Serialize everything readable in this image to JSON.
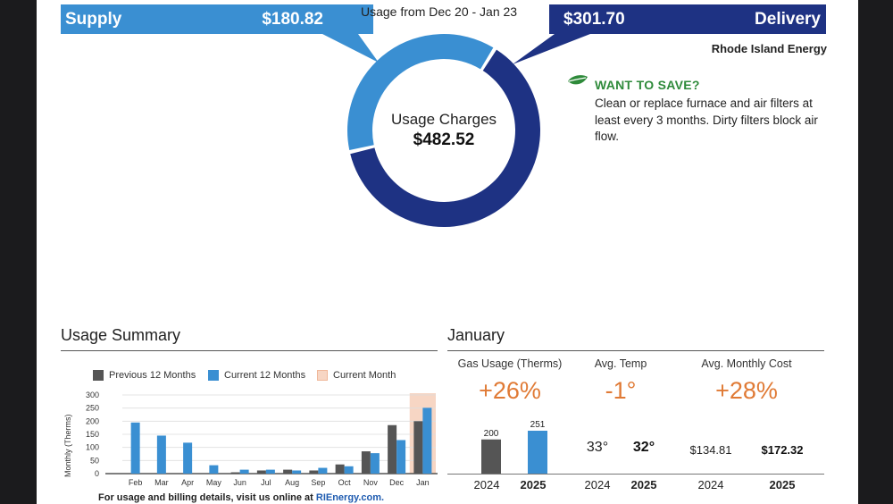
{
  "header": {
    "usage_period": "Usage from Dec 20 - Jan 23",
    "supply_label": "Supply",
    "supply_amount": "$180.82",
    "delivery_label": "Delivery",
    "delivery_amount": "$301.70",
    "company": "Rhode Island Energy"
  },
  "donut": {
    "center_label": "Usage Charges",
    "center_amount": "$482.52",
    "supply_value": 180.82,
    "delivery_value": 301.7,
    "supply_color": "#3a8fd2",
    "delivery_color": "#1e3283"
  },
  "tip": {
    "icon": "leaf-icon",
    "title": "WANT TO SAVE?",
    "text": "Clean or replace furnace and air filters at least every 3 months. Dirty filters block air flow."
  },
  "usage_summary": {
    "title": "Usage Summary",
    "legend": {
      "previous": "Previous 12 Months",
      "current": "Current 12 Months",
      "current_month": "Current Month"
    },
    "colors": {
      "previous": "#555555",
      "current": "#3a8fd2",
      "current_month": "#f7d6c4"
    },
    "footer_text": "For usage and billing details, visit us online at ",
    "footer_link": "RIEnergy.com."
  },
  "chart_data": {
    "type": "bar",
    "categories": [
      "Feb",
      "Mar",
      "Apr",
      "May",
      "Jun",
      "Jul",
      "Aug",
      "Sep",
      "Oct",
      "Nov",
      "Dec",
      "Jan"
    ],
    "series": [
      {
        "name": "Previous 12 Months",
        "values": [
          0,
          0,
          0,
          0,
          5,
          12,
          15,
          12,
          35,
          85,
          185,
          200
        ]
      },
      {
        "name": "Current 12 Months",
        "values": [
          195,
          145,
          118,
          32,
          15,
          15,
          12,
          22,
          28,
          78,
          128,
          251
        ]
      }
    ],
    "highlight_category": "Jan",
    "ylabel": "Monthly (Therms)",
    "ylim": [
      0,
      300
    ],
    "yticks": [
      0,
      50,
      100,
      150,
      200,
      250,
      300
    ],
    "legend_position": "top"
  },
  "january": {
    "title": "January",
    "gas_usage": {
      "label": "Gas Usage (Therms)",
      "change": "+26%",
      "value_2024": 200,
      "value_2025": 251,
      "value_2024_label": "200",
      "value_2025_label": "251",
      "year_2024": "2024",
      "year_2025": "2025"
    },
    "avg_temp": {
      "label": "Avg. Temp",
      "change": "-1°",
      "value_2024": "33°",
      "value_2025": "32°",
      "year_2024": "2024",
      "year_2025": "2025"
    },
    "avg_cost": {
      "label": "Avg. Monthly Cost",
      "change": "+28%",
      "value_2024": "$134.81",
      "value_2025": "$172.32",
      "year_2024": "2024",
      "year_2025": "2025"
    }
  }
}
